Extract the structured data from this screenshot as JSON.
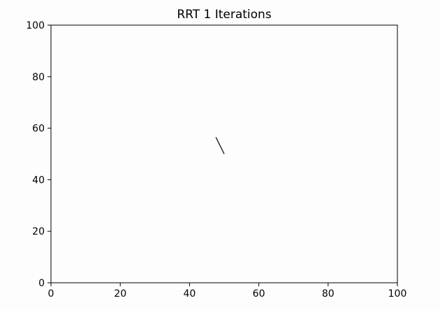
{
  "chart_data": {
    "type": "line",
    "title": "RRT 1 Iterations",
    "xlabel": "",
    "ylabel": "",
    "xlim": [
      0,
      100
    ],
    "ylim": [
      0,
      100
    ],
    "xticks": [
      0,
      20,
      40,
      60,
      80,
      100
    ],
    "yticks": [
      0,
      20,
      40,
      60,
      80,
      100
    ],
    "grid": false,
    "background": "#fdfdfd",
    "series": [
      {
        "x": [
          50.0,
          47.6
        ],
        "y": [
          50.0,
          56.5
        ],
        "color": "#000000"
      }
    ]
  }
}
